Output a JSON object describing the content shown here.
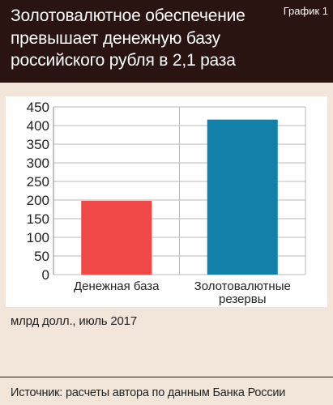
{
  "header": {
    "title": "Золотовалютное обеспечение превышает денежную базу российского рубля в 2,1 раза",
    "chart_number": "График 1"
  },
  "unit_note": "млрд долл., июль 2017",
  "source": "Источник: расчеты автора по данным Банка России",
  "colors": {
    "header_bg": "#2a1412",
    "page_bg": "#f2e6da",
    "bar_money_base": "#f04747",
    "bar_reserves": "#1280a9"
  },
  "chart_data": {
    "type": "bar",
    "categories": [
      "Денежная база",
      "Золотовалютные\nрезервы"
    ],
    "values": [
      198,
      416
    ],
    "ylim": [
      0,
      450
    ],
    "yticks": [
      0,
      50,
      100,
      150,
      200,
      250,
      300,
      350,
      400,
      450
    ],
    "grid": true,
    "title": "",
    "xlabel": "",
    "ylabel": ""
  }
}
